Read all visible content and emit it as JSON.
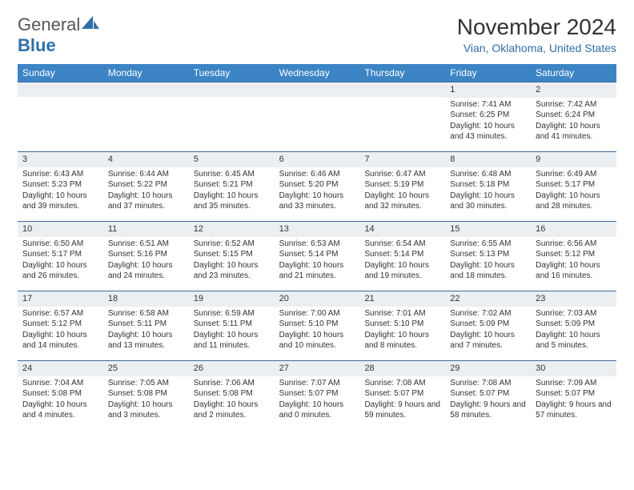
{
  "logo": {
    "text1": "General",
    "text2": "Blue"
  },
  "title": "November 2024",
  "location": "Vian, Oklahoma, United States",
  "colors": {
    "header_bg": "#3d84c4",
    "header_text": "#ffffff",
    "row_border": "#3d6a9a",
    "daynum_bg": "#eceff1",
    "body_text": "#333333",
    "accent": "#2f6fa8"
  },
  "weekdays": [
    "Sunday",
    "Monday",
    "Tuesday",
    "Wednesday",
    "Thursday",
    "Friday",
    "Saturday"
  ],
  "weeks": [
    [
      {
        "n": "",
        "sunrise": "",
        "sunset": "",
        "daylight": ""
      },
      {
        "n": "",
        "sunrise": "",
        "sunset": "",
        "daylight": ""
      },
      {
        "n": "",
        "sunrise": "",
        "sunset": "",
        "daylight": ""
      },
      {
        "n": "",
        "sunrise": "",
        "sunset": "",
        "daylight": ""
      },
      {
        "n": "",
        "sunrise": "",
        "sunset": "",
        "daylight": ""
      },
      {
        "n": "1",
        "sunrise": "Sunrise: 7:41 AM",
        "sunset": "Sunset: 6:25 PM",
        "daylight": "Daylight: 10 hours and 43 minutes."
      },
      {
        "n": "2",
        "sunrise": "Sunrise: 7:42 AM",
        "sunset": "Sunset: 6:24 PM",
        "daylight": "Daylight: 10 hours and 41 minutes."
      }
    ],
    [
      {
        "n": "3",
        "sunrise": "Sunrise: 6:43 AM",
        "sunset": "Sunset: 5:23 PM",
        "daylight": "Daylight: 10 hours and 39 minutes."
      },
      {
        "n": "4",
        "sunrise": "Sunrise: 6:44 AM",
        "sunset": "Sunset: 5:22 PM",
        "daylight": "Daylight: 10 hours and 37 minutes."
      },
      {
        "n": "5",
        "sunrise": "Sunrise: 6:45 AM",
        "sunset": "Sunset: 5:21 PM",
        "daylight": "Daylight: 10 hours and 35 minutes."
      },
      {
        "n": "6",
        "sunrise": "Sunrise: 6:46 AM",
        "sunset": "Sunset: 5:20 PM",
        "daylight": "Daylight: 10 hours and 33 minutes."
      },
      {
        "n": "7",
        "sunrise": "Sunrise: 6:47 AM",
        "sunset": "Sunset: 5:19 PM",
        "daylight": "Daylight: 10 hours and 32 minutes."
      },
      {
        "n": "8",
        "sunrise": "Sunrise: 6:48 AM",
        "sunset": "Sunset: 5:18 PM",
        "daylight": "Daylight: 10 hours and 30 minutes."
      },
      {
        "n": "9",
        "sunrise": "Sunrise: 6:49 AM",
        "sunset": "Sunset: 5:17 PM",
        "daylight": "Daylight: 10 hours and 28 minutes."
      }
    ],
    [
      {
        "n": "10",
        "sunrise": "Sunrise: 6:50 AM",
        "sunset": "Sunset: 5:17 PM",
        "daylight": "Daylight: 10 hours and 26 minutes."
      },
      {
        "n": "11",
        "sunrise": "Sunrise: 6:51 AM",
        "sunset": "Sunset: 5:16 PM",
        "daylight": "Daylight: 10 hours and 24 minutes."
      },
      {
        "n": "12",
        "sunrise": "Sunrise: 6:52 AM",
        "sunset": "Sunset: 5:15 PM",
        "daylight": "Daylight: 10 hours and 23 minutes."
      },
      {
        "n": "13",
        "sunrise": "Sunrise: 6:53 AM",
        "sunset": "Sunset: 5:14 PM",
        "daylight": "Daylight: 10 hours and 21 minutes."
      },
      {
        "n": "14",
        "sunrise": "Sunrise: 6:54 AM",
        "sunset": "Sunset: 5:14 PM",
        "daylight": "Daylight: 10 hours and 19 minutes."
      },
      {
        "n": "15",
        "sunrise": "Sunrise: 6:55 AM",
        "sunset": "Sunset: 5:13 PM",
        "daylight": "Daylight: 10 hours and 18 minutes."
      },
      {
        "n": "16",
        "sunrise": "Sunrise: 6:56 AM",
        "sunset": "Sunset: 5:12 PM",
        "daylight": "Daylight: 10 hours and 16 minutes."
      }
    ],
    [
      {
        "n": "17",
        "sunrise": "Sunrise: 6:57 AM",
        "sunset": "Sunset: 5:12 PM",
        "daylight": "Daylight: 10 hours and 14 minutes."
      },
      {
        "n": "18",
        "sunrise": "Sunrise: 6:58 AM",
        "sunset": "Sunset: 5:11 PM",
        "daylight": "Daylight: 10 hours and 13 minutes."
      },
      {
        "n": "19",
        "sunrise": "Sunrise: 6:59 AM",
        "sunset": "Sunset: 5:11 PM",
        "daylight": "Daylight: 10 hours and 11 minutes."
      },
      {
        "n": "20",
        "sunrise": "Sunrise: 7:00 AM",
        "sunset": "Sunset: 5:10 PM",
        "daylight": "Daylight: 10 hours and 10 minutes."
      },
      {
        "n": "21",
        "sunrise": "Sunrise: 7:01 AM",
        "sunset": "Sunset: 5:10 PM",
        "daylight": "Daylight: 10 hours and 8 minutes."
      },
      {
        "n": "22",
        "sunrise": "Sunrise: 7:02 AM",
        "sunset": "Sunset: 5:09 PM",
        "daylight": "Daylight: 10 hours and 7 minutes."
      },
      {
        "n": "23",
        "sunrise": "Sunrise: 7:03 AM",
        "sunset": "Sunset: 5:09 PM",
        "daylight": "Daylight: 10 hours and 5 minutes."
      }
    ],
    [
      {
        "n": "24",
        "sunrise": "Sunrise: 7:04 AM",
        "sunset": "Sunset: 5:08 PM",
        "daylight": "Daylight: 10 hours and 4 minutes."
      },
      {
        "n": "25",
        "sunrise": "Sunrise: 7:05 AM",
        "sunset": "Sunset: 5:08 PM",
        "daylight": "Daylight: 10 hours and 3 minutes."
      },
      {
        "n": "26",
        "sunrise": "Sunrise: 7:06 AM",
        "sunset": "Sunset: 5:08 PM",
        "daylight": "Daylight: 10 hours and 2 minutes."
      },
      {
        "n": "27",
        "sunrise": "Sunrise: 7:07 AM",
        "sunset": "Sunset: 5:07 PM",
        "daylight": "Daylight: 10 hours and 0 minutes."
      },
      {
        "n": "28",
        "sunrise": "Sunrise: 7:08 AM",
        "sunset": "Sunset: 5:07 PM",
        "daylight": "Daylight: 9 hours and 59 minutes."
      },
      {
        "n": "29",
        "sunrise": "Sunrise: 7:08 AM",
        "sunset": "Sunset: 5:07 PM",
        "daylight": "Daylight: 9 hours and 58 minutes."
      },
      {
        "n": "30",
        "sunrise": "Sunrise: 7:09 AM",
        "sunset": "Sunset: 5:07 PM",
        "daylight": "Daylight: 9 hours and 57 minutes."
      }
    ]
  ]
}
